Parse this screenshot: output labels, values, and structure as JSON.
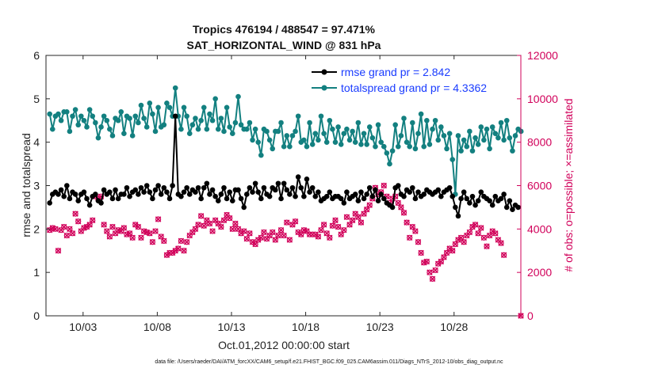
{
  "chart_data": {
    "type": "line",
    "title": "Tropics 476194 / 488547 = 97.471%",
    "subtitle": "SAT_HORIZONTAL_WIND @ 831 hPa",
    "xlabel": "Oct.01,2012 00:00:00 start",
    "ylabel": "rmse and totalspread",
    "ylabel_right": "# of obs: o=possible; ×=assimilated",
    "xlim": [
      0.5,
      32.5
    ],
    "ylim": [
      0,
      6
    ],
    "ylim_right": [
      0,
      12000
    ],
    "x_ticks": [
      3,
      8,
      13,
      18,
      23,
      28
    ],
    "x_tick_labels": [
      "10/03",
      "10/08",
      "10/13",
      "10/18",
      "10/23",
      "10/28"
    ],
    "y_ticks": [
      0,
      1,
      2,
      3,
      4,
      5,
      6
    ],
    "y_tick_labels": [
      "0",
      "1",
      "2",
      "3",
      "4",
      "5",
      "6"
    ],
    "y_ticks_right": [
      0,
      2000,
      4000,
      6000,
      8000,
      10000,
      12000
    ],
    "y_tick_labels_right": [
      "0",
      "2000",
      "4000",
      "6000",
      "8000",
      "10000",
      "12000"
    ],
    "legend_position": "top-right",
    "series": [
      {
        "name": "rmse grand pr = 2.842",
        "color": "#000000",
        "axis": "left",
        "values": [
          2.6,
          2.8,
          2.85,
          2.8,
          2.9,
          2.75,
          3.0,
          2.7,
          2.85,
          2.8,
          2.65,
          2.8,
          2.85,
          2.7,
          2.55,
          2.75,
          2.8,
          2.65,
          2.6,
          2.9,
          2.8,
          2.85,
          2.7,
          2.9,
          2.7,
          2.8,
          2.8,
          2.95,
          2.75,
          2.85,
          2.9,
          2.8,
          2.95,
          2.85,
          3.0,
          2.85,
          2.7,
          2.9,
          3.0,
          2.8,
          2.95,
          2.85,
          2.7,
          3.0,
          4.6,
          2.8,
          2.75,
          2.85,
          2.95,
          2.8,
          2.9,
          2.85,
          2.95,
          2.7,
          2.95,
          3.05,
          2.8,
          2.9,
          2.75,
          2.65,
          2.8,
          2.95,
          2.7,
          2.85,
          2.65,
          2.9,
          2.9,
          2.7,
          2.5,
          2.8,
          2.95,
          2.85,
          3.05,
          2.85,
          2.7,
          2.95,
          2.8,
          2.75,
          2.95,
          2.9,
          3.05,
          2.7,
          3.05,
          2.9,
          2.8,
          2.95,
          2.75,
          3.2,
          2.95,
          2.75,
          3.15,
          2.85,
          2.95,
          2.75,
          2.85,
          2.65,
          2.7,
          2.75,
          2.85,
          2.7,
          2.75,
          2.75,
          2.7,
          2.6,
          2.85,
          2.7,
          2.75,
          2.8,
          2.65,
          2.85,
          2.7,
          2.8,
          2.95,
          2.75,
          2.9,
          2.65,
          2.8,
          2.7,
          2.6,
          2.55,
          2.5,
          2.95,
          3.0,
          2.8,
          2.75,
          2.9,
          2.85,
          2.95,
          2.7,
          2.85,
          2.75,
          2.8,
          2.9,
          2.85,
          2.8,
          2.85,
          2.9,
          2.75,
          2.85,
          2.9,
          2.95,
          2.75,
          2.5,
          2.3,
          2.7,
          2.85,
          2.7,
          2.6,
          2.75,
          2.55,
          2.65,
          2.85,
          2.75,
          2.7,
          2.65,
          2.55,
          2.75,
          2.65,
          2.7,
          2.8,
          2.5,
          2.65,
          2.45,
          2.55,
          2.5
        ]
      },
      {
        "name": "totalspread grand pr = 4.3362",
        "color": "#138080",
        "axis": "left",
        "values": [
          4.65,
          4.3,
          4.6,
          4.65,
          4.5,
          4.7,
          4.7,
          4.25,
          4.6,
          4.75,
          4.4,
          4.6,
          4.5,
          4.35,
          4.75,
          4.6,
          4.45,
          4.1,
          4.35,
          4.6,
          4.5,
          4.3,
          4.15,
          4.55,
          4.5,
          4.7,
          4.2,
          4.6,
          4.55,
          4.15,
          4.6,
          4.45,
          4.85,
          4.55,
          4.35,
          4.9,
          4.65,
          4.25,
          4.8,
          4.35,
          4.4,
          4.9,
          4.8,
          4.6,
          5.25,
          4.6,
          4.3,
          4.8,
          4.6,
          4.2,
          4.4,
          4.55,
          4.3,
          4.5,
          4.8,
          4.3,
          4.65,
          4.5,
          5.0,
          4.3,
          4.55,
          4.25,
          4.8,
          4.35,
          4.2,
          4.45,
          5.05,
          4.4,
          4.3,
          4.3,
          4.45,
          4.05,
          4.3,
          4.0,
          3.7,
          4.3,
          4.25,
          4.05,
          3.85,
          4.25,
          4.25,
          4.45,
          3.9,
          4.15,
          3.9,
          4.15,
          4.25,
          4.6,
          4.0,
          4.05,
          3.9,
          4.45,
          3.95,
          4.2,
          4.05,
          4.6,
          4.2,
          4.0,
          4.5,
          4.3,
          4.0,
          4.35,
          3.95,
          4.2,
          4.3,
          4.05,
          4.25,
          4.0,
          4.45,
          3.95,
          4.2,
          3.95,
          4.35,
          4.1,
          3.9,
          4.4,
          4.0,
          3.9,
          3.75,
          3.5,
          3.8,
          4.4,
          3.9,
          4.15,
          4.55,
          4.0,
          3.9,
          4.45,
          3.85,
          4.2,
          4.65,
          3.9,
          4.5,
          3.95,
          4.3,
          4.5,
          4.05,
          4.35,
          4.15,
          3.85,
          4.2,
          3.6,
          2.8,
          4.15,
          3.8,
          4.05,
          3.9,
          4.25,
          3.8,
          4.1,
          3.95,
          4.35,
          4.05,
          4.3,
          3.85,
          4.35,
          4.2,
          4.1,
          4.45,
          4.05,
          4.5,
          4.1,
          3.8,
          4.15,
          4.3,
          4.25
        ]
      },
      {
        "name": "obs possible",
        "color": "#d1005a",
        "axis": "right",
        "marker": "o",
        "values": [
          3950,
          4050,
          4000,
          3000,
          3950,
          4100,
          3700,
          4000,
          3800,
          4700,
          4350,
          3900,
          4050,
          4100,
          4200,
          4400,
          5500,
          5400,
          5500,
          4200,
          3900,
          3650,
          4100,
          3800,
          3950,
          3900,
          4050,
          3750,
          3800,
          3600,
          4200,
          4100,
          3600,
          3900,
          3850,
          3800,
          3400,
          3900,
          4450,
          3650,
          3450,
          2800,
          2900,
          2900,
          3000,
          3100,
          3450,
          3000,
          3400,
          3700,
          3850,
          4000,
          4200,
          4600,
          4150,
          4400,
          4250,
          3900,
          4400,
          4250,
          4100,
          4400,
          4650,
          4500,
          4000,
          4250,
          4000,
          3800,
          3900,
          3550,
          3800,
          3400,
          3300,
          3500,
          3600,
          3850,
          3550,
          3700,
          3850,
          3500,
          3700,
          3950,
          3700,
          4300,
          3500,
          4200,
          4350,
          3850,
          3750,
          3950,
          3900,
          3750,
          3750,
          3750,
          3650,
          3950,
          4200,
          3800,
          3600,
          4150,
          4400,
          4100,
          3750,
          3950,
          4550,
          4200,
          4400,
          4700,
          4550,
          4300,
          4700,
          4900,
          5100,
          5400,
          5900,
          5600,
          5700,
          6000,
          5500,
          5200,
          5400,
          5500,
          5200,
          5000,
          4750,
          4300,
          3600,
          4100,
          3900,
          3400,
          2900,
          2450,
          2500,
          2000,
          1700,
          2100,
          2400,
          2500,
          2700,
          2900,
          3100,
          3000,
          3300,
          3500,
          3600,
          3400,
          3700,
          3850,
          4100,
          4200,
          3800,
          4050,
          3600,
          3200,
          3700,
          3900,
          3800,
          3500,
          3350,
          2800
        ],
        "extra": [
          [
            32.5,
            0
          ]
        ]
      },
      {
        "name": "obs assimilated",
        "color": "#d1005a",
        "axis": "right",
        "marker": "×",
        "values": [
          3950,
          4050,
          4000,
          3000,
          3950,
          4100,
          3700,
          4000,
          3800,
          4700,
          4350,
          3900,
          4050,
          4100,
          4200,
          4400,
          5500,
          5400,
          5500,
          4200,
          3900,
          3650,
          4100,
          3800,
          3950,
          3900,
          4050,
          3750,
          3800,
          3600,
          4200,
          4100,
          3600,
          3900,
          3850,
          3800,
          3400,
          3900,
          4450,
          3650,
          3450,
          2800,
          2900,
          2900,
          3000,
          3100,
          3450,
          3000,
          3400,
          3700,
          3850,
          4000,
          4200,
          4600,
          4150,
          4400,
          4250,
          3900,
          4400,
          4250,
          4100,
          4400,
          4650,
          4500,
          4000,
          4250,
          4000,
          3800,
          3900,
          3550,
          3800,
          3400,
          3300,
          3500,
          3600,
          3850,
          3550,
          3700,
          3850,
          3500,
          3700,
          3950,
          3700,
          4300,
          3500,
          4200,
          4350,
          3850,
          3750,
          3950,
          3900,
          3750,
          3750,
          3750,
          3650,
          3950,
          4200,
          3800,
          3600,
          4150,
          4400,
          4100,
          3750,
          3950,
          4550,
          4200,
          4400,
          4700,
          4550,
          4300,
          4700,
          4900,
          5100,
          5400,
          5900,
          5600,
          5700,
          6000,
          5500,
          5200,
          5400,
          5500,
          5200,
          5000,
          4750,
          4300,
          3600,
          4100,
          3900,
          3400,
          2900,
          2450,
          2500,
          2000,
          1700,
          2100,
          2400,
          2500,
          2700,
          2900,
          3100,
          3000,
          3300,
          3500,
          3600,
          3400,
          3700,
          3850,
          4100,
          4200,
          3800,
          4050,
          3600,
          3200,
          3700,
          3900,
          3800,
          3500,
          3350,
          2800
        ],
        "extra": [
          [
            32.5,
            0
          ]
        ]
      }
    ],
    "x_start": 0.75,
    "x_step": 0.1925,
    "footnote": "data file: /Users/raeder/DAI/ATM_forcXX/CAM6_setup/f.e21.FHIST_BGC.f09_025.CAM6assim.011/Diags_NTrS_2012-10/obs_diag_output.nc"
  }
}
